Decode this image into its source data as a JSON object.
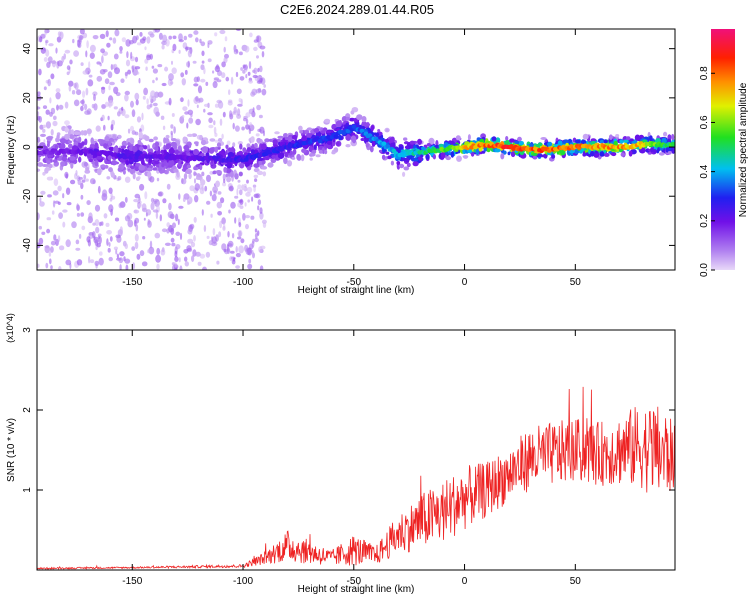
{
  "title": "C2E6.2024.289.01.44.R05",
  "chart_data": [
    {
      "type": "heatmap",
      "name": "spectrogram",
      "xlabel": "Height of straight line (km)",
      "ylabel": "Frequency (Hz)",
      "xlim": [
        -193,
        95
      ],
      "ylim": [
        -50,
        48
      ],
      "xticks": [
        -150,
        -100,
        -50,
        0,
        50
      ],
      "yticks": [
        -40,
        -20,
        0,
        20,
        40
      ],
      "colorbar": {
        "label": "Normalized spectral amplitude",
        "range": [
          0,
          0.98
        ],
        "ticks": [
          0.0,
          0.2,
          0.4,
          0.6,
          0.8
        ]
      },
      "ridge": {
        "description": "dominant frequency track",
        "x": [
          -190,
          -170,
          -150,
          -130,
          -110,
          -100,
          -80,
          -60,
          -50,
          -40,
          -30,
          -20,
          -10,
          0,
          10,
          20,
          30,
          40,
          50,
          60,
          70,
          80,
          90
        ],
        "freq": [
          -2,
          -2,
          -4,
          -4,
          -5,
          -5,
          0,
          4,
          8,
          3,
          -3,
          -2,
          -1,
          0,
          1,
          0,
          -1,
          -1,
          0,
          0,
          0,
          1,
          1
        ],
        "amplitude": [
          0.18,
          0.22,
          0.25,
          0.22,
          0.25,
          0.28,
          0.3,
          0.34,
          0.35,
          0.4,
          0.45,
          0.5,
          0.6,
          0.75,
          0.85,
          0.9,
          0.88,
          0.85,
          0.85,
          0.82,
          0.8,
          0.75,
          0.55
        ]
      },
      "scatter_noise_region": [
        -193,
        -100
      ]
    },
    {
      "type": "line",
      "name": "snr",
      "xlabel": "Height of straight line (km)",
      "ylabel": "SNR (10 * v/v)",
      "y_multiplier": "(x10^4)",
      "xlim": [
        -193,
        95
      ],
      "ylim": [
        0,
        3
      ],
      "xticks": [
        -150,
        -100,
        -50,
        0,
        50
      ],
      "yticks": [
        1,
        2,
        3
      ],
      "color": "#ee2222",
      "envelope": {
        "x": [
          -193,
          -150,
          -100,
          -90,
          -80,
          -70,
          -60,
          -50,
          -40,
          -30,
          -20,
          -10,
          0,
          10,
          20,
          30,
          40,
          50,
          60,
          70,
          80,
          90,
          95
        ],
        "mean": [
          0.02,
          0.03,
          0.05,
          0.15,
          0.3,
          0.22,
          0.15,
          0.25,
          0.18,
          0.45,
          0.6,
          0.72,
          0.9,
          1.0,
          1.2,
          1.4,
          1.45,
          1.5,
          1.45,
          1.5,
          1.55,
          1.45,
          1.4
        ],
        "spread": [
          0.01,
          0.01,
          0.02,
          0.08,
          0.2,
          0.15,
          0.1,
          0.2,
          0.12,
          0.25,
          0.35,
          0.4,
          0.4,
          0.35,
          0.35,
          0.4,
          0.4,
          0.4,
          0.4,
          0.45,
          0.55,
          0.6,
          0.4
        ]
      }
    }
  ],
  "colors": {
    "line": "#ee2222",
    "frame": "#000000"
  }
}
